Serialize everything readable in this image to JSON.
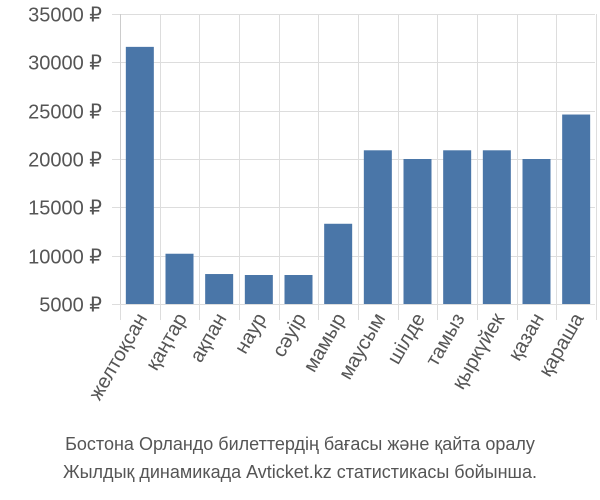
{
  "chart_data": {
    "type": "bar",
    "categories": [
      "желтоқсан",
      "қаңтар",
      "ақпан",
      "наур",
      "сәуір",
      "мамыр",
      "маусым",
      "шілде",
      "тамыз",
      "қыркүйек",
      "қазан",
      "қараша"
    ],
    "values": [
      31600,
      10200,
      8100,
      8000,
      8000,
      13300,
      20900,
      20000,
      20900,
      20900,
      20000,
      24600
    ],
    "yticks": [
      "5000 ₽",
      "10000 ₽",
      "15000 ₽",
      "20000 ₽",
      "25000 ₽",
      "30000 ₽",
      "35000 ₽"
    ],
    "ytick_values": [
      5000,
      10000,
      15000,
      20000,
      25000,
      30000,
      35000
    ],
    "ylim": [
      5000,
      35000
    ],
    "grid": true,
    "bar_color": "#4a76a8",
    "grid_color": "#dddddd",
    "axis_text_color": "#555555"
  },
  "caption": {
    "line1": "Бостона Орландо билеттердің бағасы және қайта оралу",
    "line2": "Жылдық динамикада Avticket.kz статистикасы бойынша."
  }
}
